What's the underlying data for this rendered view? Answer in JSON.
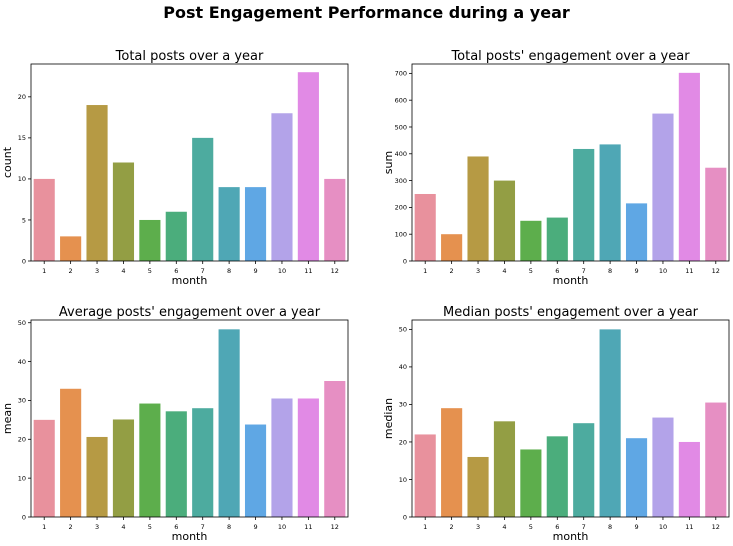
{
  "suptitle": "Post Engagement Performance during a year",
  "colors": [
    "#e8919d",
    "#e5914f",
    "#b69a44",
    "#939e44",
    "#5dae4c",
    "#4bad7c",
    "#4dab9f",
    "#4fa7b5",
    "#5fa7e4",
    "#b3a3e9",
    "#e18ae5",
    "#e68fc3"
  ],
  "chart_data": [
    {
      "type": "bar",
      "title": "Total posts over a year",
      "xlabel": "month",
      "ylabel": "count",
      "categories": [
        "1",
        "2",
        "3",
        "4",
        "5",
        "6",
        "7",
        "8",
        "9",
        "10",
        "11",
        "12"
      ],
      "values": [
        10,
        3,
        19,
        12,
        5,
        6,
        15,
        9,
        9,
        18,
        23,
        10
      ],
      "ylim": [
        0,
        24
      ],
      "yticks": [
        0,
        5,
        10,
        15,
        20
      ]
    },
    {
      "type": "bar",
      "title": "Total posts' engagement over a year",
      "xlabel": "month",
      "ylabel": "sum",
      "categories": [
        "1",
        "2",
        "3",
        "4",
        "5",
        "6",
        "7",
        "8",
        "9",
        "10",
        "11",
        "12"
      ],
      "values": [
        250,
        100,
        390,
        300,
        150,
        162,
        418,
        435,
        215,
        550,
        702,
        348
      ],
      "ylim": [
        0,
        735
      ],
      "yticks": [
        0,
        100,
        200,
        300,
        400,
        500,
        600,
        700
      ]
    },
    {
      "type": "bar",
      "title": "Average posts' engagement over a year",
      "xlabel": "month",
      "ylabel": "mean",
      "categories": [
        "1",
        "2",
        "3",
        "4",
        "5",
        "6",
        "7",
        "8",
        "9",
        "10",
        "11",
        "12"
      ],
      "values": [
        25,
        33,
        20.6,
        25.1,
        29.2,
        27.2,
        28,
        48.3,
        23.8,
        30.5,
        30.5,
        35
      ],
      "ylim": [
        0,
        50.7
      ],
      "yticks": [
        0,
        10,
        20,
        30,
        40,
        50
      ]
    },
    {
      "type": "bar",
      "title": "Median posts' engagement over a year",
      "xlabel": "month",
      "ylabel": "median",
      "categories": [
        "1",
        "2",
        "3",
        "4",
        "5",
        "6",
        "7",
        "8",
        "9",
        "10",
        "11",
        "12"
      ],
      "values": [
        22,
        29,
        16,
        25.5,
        18,
        21.5,
        25,
        50,
        21,
        26.5,
        20,
        30.5
      ],
      "ylim": [
        0,
        52.5
      ],
      "yticks": [
        0,
        10,
        20,
        30,
        40,
        50
      ]
    }
  ]
}
